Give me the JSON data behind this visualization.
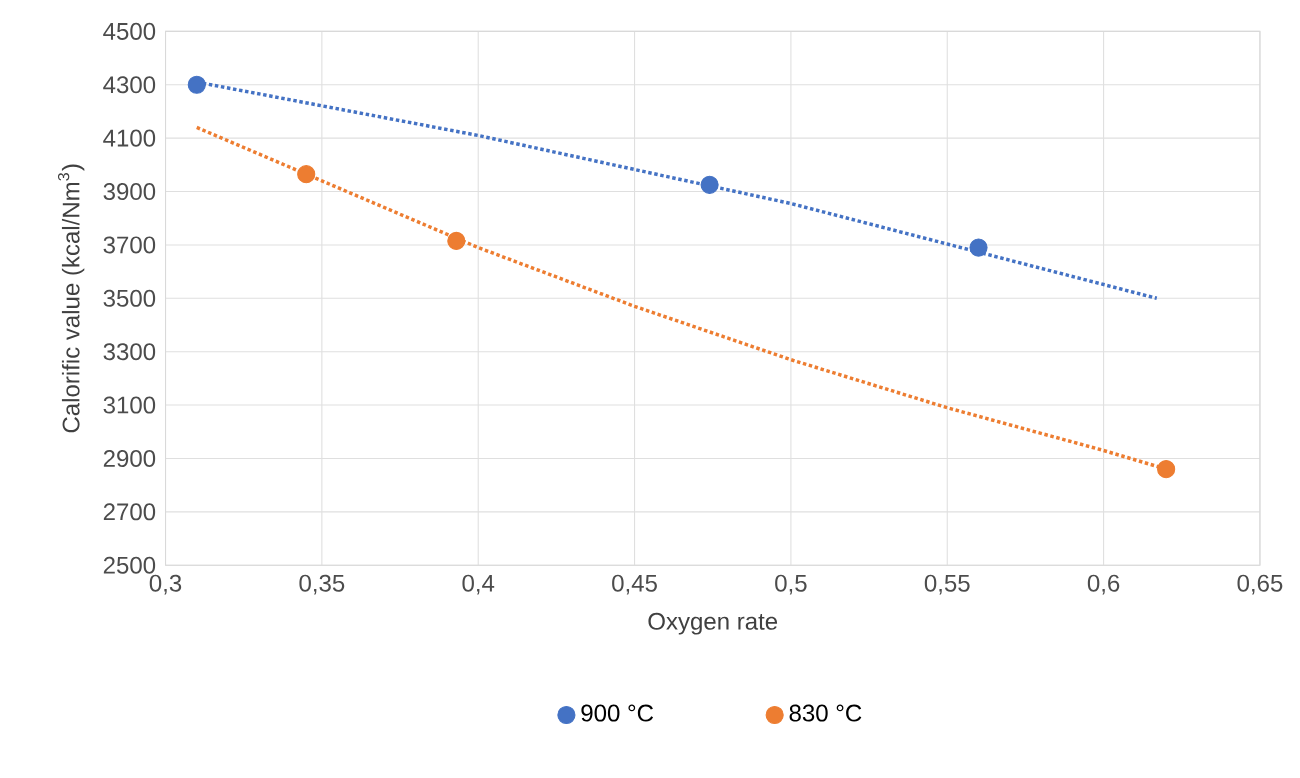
{
  "chart_data": {
    "type": "scatter",
    "xlabel": "Oxygen rate",
    "ylabel": "Calorific value (kcal/Nm$^{3}$)",
    "xlim": [
      0.3,
      0.65
    ],
    "xticks": [
      {
        "value": 0.3,
        "label": "0,3"
      },
      {
        "value": 0.35,
        "label": "0,35"
      },
      {
        "value": 0.4,
        "label": "0,4"
      },
      {
        "value": 0.45,
        "label": "0,45"
      },
      {
        "value": 0.5,
        "label": "0,5"
      },
      {
        "value": 0.55,
        "label": "0,55"
      },
      {
        "value": 0.6,
        "label": "0,6"
      },
      {
        "value": 0.65,
        "label": "0,65"
      }
    ],
    "ylim": [
      2500,
      4500
    ],
    "yticks": [
      2500,
      2700,
      2900,
      3100,
      3300,
      3500,
      3700,
      3900,
      4100,
      4300,
      4500
    ],
    "grid": true,
    "legend": "bottom",
    "marker": "circle",
    "series": [
      {
        "name": "900 °C",
        "color": "#4472c4",
        "x": [
          0.31,
          0.474,
          0.56
        ],
        "values": [
          4300,
          3925,
          3690
        ]
      },
      {
        "name": "830 °C",
        "color": "#ed7d31",
        "x": [
          0.345,
          0.393,
          0.62
        ],
        "values": [
          3965,
          3715,
          2860
        ]
      },
      {
        "type": "line",
        "marker": "none",
        "line_style": "dotted",
        "color": "#4472c4",
        "x": [
          0.31,
          0.4,
          0.5,
          0.617
        ],
        "values": [
          4310,
          4110,
          3855,
          3500
        ]
      },
      {
        "type": "line",
        "marker": "none",
        "line_style": "dotted",
        "color": "#ed7d31",
        "x": [
          0.31,
          0.35,
          0.4,
          0.45,
          0.5,
          0.55,
          0.6,
          0.62
        ],
        "values": [
          4140,
          3940,
          3690,
          3470,
          3270,
          3090,
          2930,
          2860
        ]
      }
    ]
  }
}
